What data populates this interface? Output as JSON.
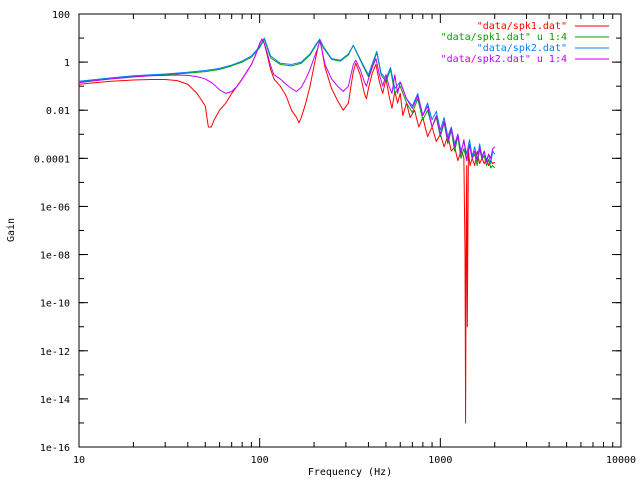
{
  "chart_data": {
    "type": "line",
    "title": "",
    "xlabel": "Frequency (Hz)",
    "ylabel": "Gain",
    "x_scale": "log",
    "y_scale": "log",
    "xlim": [
      10,
      10000
    ],
    "ylim": [
      1e-16,
      100
    ],
    "x_ticks": [
      {
        "value": 10,
        "label": "10"
      },
      {
        "value": 100,
        "label": "100"
      },
      {
        "value": 1000,
        "label": "1000"
      },
      {
        "value": 10000,
        "label": "10000"
      }
    ],
    "y_ticks": [
      {
        "value": 100,
        "label": "100"
      },
      {
        "value": 1,
        "label": "1"
      },
      {
        "value": 0.01,
        "label": "0.01"
      },
      {
        "value": 0.0001,
        "label": "0.0001"
      },
      {
        "value": 1e-06,
        "label": "1e-06"
      },
      {
        "value": 1e-08,
        "label": "1e-08"
      },
      {
        "value": 1e-10,
        "label": "1e-10"
      },
      {
        "value": 1e-12,
        "label": "1e-12"
      },
      {
        "value": 1e-14,
        "label": "1e-14"
      },
      {
        "value": 1e-16,
        "label": "1e-16"
      }
    ],
    "grid": false,
    "legend_position": "top-right",
    "series": [
      {
        "name": "\"data/spk1.dat\"",
        "color": "#ff0000",
        "x": [
          10,
          15,
          20,
          25,
          30,
          35,
          40,
          45,
          50,
          52,
          54,
          56,
          60,
          65,
          70,
          75,
          80,
          85,
          90,
          95,
          100,
          103,
          106,
          110,
          115,
          120,
          130,
          140,
          150,
          160,
          165,
          170,
          180,
          190,
          200,
          210,
          215,
          220,
          230,
          250,
          270,
          290,
          310,
          320,
          330,
          340,
          360,
          380,
          390,
          400,
          420,
          440,
          460,
          480,
          500,
          520,
          540,
          560,
          580,
          600,
          620,
          650,
          680,
          720,
          760,
          800,
          850,
          900,
          950,
          1000,
          1050,
          1100,
          1150,
          1200,
          1250,
          1300,
          1330,
          1350,
          1370,
          1380,
          1390,
          1400,
          1410,
          1430,
          1460,
          1500,
          1550,
          1600,
          1650,
          1700,
          1750,
          1800,
          1850,
          1900,
          1950,
          2000
        ],
        "y": [
          0.12,
          0.16,
          0.18,
          0.19,
          0.19,
          0.17,
          0.12,
          0.05,
          0.015,
          0.002,
          0.002,
          0.004,
          0.01,
          0.02,
          0.05,
          0.1,
          0.2,
          0.4,
          0.8,
          2,
          6,
          9,
          6,
          2,
          0.5,
          0.2,
          0.1,
          0.04,
          0.01,
          0.005,
          0.003,
          0.005,
          0.02,
          0.1,
          0.7,
          4,
          8,
          4,
          0.6,
          0.08,
          0.025,
          0.01,
          0.02,
          0.1,
          0.4,
          0.9,
          0.3,
          0.05,
          0.03,
          0.08,
          0.35,
          0.8,
          0.15,
          0.05,
          0.2,
          0.04,
          0.012,
          0.06,
          0.02,
          0.05,
          0.006,
          0.02,
          0.005,
          0.01,
          0.002,
          0.005,
          0.0008,
          0.002,
          0.0005,
          0.001,
          0.0003,
          0.0009,
          0.0002,
          0.0003,
          8e-05,
          0.0002,
          0.00015,
          0.0001,
          1e-08,
          1e-15,
          1e-07,
          5e-05,
          1e-11,
          0.0002,
          5e-05,
          0.0001,
          5e-05,
          0.0002,
          6e-05,
          0.0001,
          6e-05,
          0.0001,
          5e-05,
          8e-05,
          6e-05,
          7e-05
        ]
      },
      {
        "name": "\"data/spk1.dat\" u 1:4",
        "color": "#00a000",
        "x": [
          10,
          15,
          20,
          30,
          40,
          50,
          60,
          70,
          80,
          90,
          100,
          106,
          115,
          130,
          150,
          170,
          190,
          205,
          215,
          225,
          250,
          280,
          310,
          330,
          340,
          370,
          400,
          430,
          445,
          470,
          500,
          530,
          560,
          600,
          650,
          700,
          750,
          800,
          850,
          900,
          950,
          1000,
          1050,
          1100,
          1150,
          1200,
          1250,
          1300,
          1350,
          1400,
          1450,
          1500,
          1550,
          1600,
          1650,
          1700,
          1750,
          1800,
          1850,
          1900,
          1950,
          2000
        ],
        "y": [
          0.15,
          0.2,
          0.25,
          0.3,
          0.35,
          0.4,
          0.5,
          0.7,
          1.0,
          1.6,
          4,
          9,
          1.5,
          0.8,
          0.7,
          0.9,
          2,
          5,
          9,
          4,
          1.3,
          1.1,
          2,
          5,
          3,
          0.8,
          0.25,
          1.2,
          2.5,
          0.3,
          0.15,
          0.5,
          0.05,
          0.1,
          0.02,
          0.008,
          0.03,
          0.004,
          0.01,
          0.002,
          0.005,
          0.0008,
          0.003,
          0.0004,
          0.0015,
          0.0002,
          0.0008,
          0.0001,
          0.00025,
          8e-05,
          0.0004,
          0.0001,
          0.00015,
          5e-05,
          0.00025,
          9e-05,
          0.00013,
          5e-05,
          9e-05,
          4e-05,
          5e-05,
          4e-05
        ]
      },
      {
        "name": "\"data/spk2.dat\"",
        "color": "#0080ff",
        "x": [
          10,
          15,
          20,
          30,
          40,
          50,
          60,
          70,
          80,
          90,
          100,
          106,
          115,
          130,
          150,
          170,
          190,
          205,
          215,
          225,
          250,
          280,
          310,
          330,
          340,
          370,
          400,
          430,
          445,
          470,
          500,
          530,
          560,
          600,
          650,
          700,
          750,
          800,
          850,
          900,
          950,
          1000,
          1050,
          1100,
          1150,
          1200,
          1250,
          1300,
          1350,
          1400,
          1450,
          1500,
          1550,
          1600,
          1650,
          1700,
          1750,
          1800,
          1850,
          1900,
          1950,
          2000
        ],
        "y": [
          0.16,
          0.22,
          0.27,
          0.32,
          0.38,
          0.45,
          0.55,
          0.75,
          1.1,
          1.8,
          4.5,
          10,
          1.8,
          0.9,
          0.8,
          1.0,
          2.2,
          5.5,
          9,
          4.5,
          1.4,
          1.2,
          2.2,
          5,
          3.2,
          0.9,
          0.3,
          1.4,
          2.8,
          0.35,
          0.2,
          0.6,
          0.08,
          0.15,
          0.03,
          0.015,
          0.05,
          0.006,
          0.02,
          0.004,
          0.009,
          0.0015,
          0.005,
          0.0008,
          0.002,
          0.0004,
          0.001,
          0.0002,
          0.0005,
          0.00015,
          0.0006,
          0.00012,
          0.0003,
          8e-05,
          0.0004,
          0.00012,
          0.0002,
          8e-05,
          0.00015,
          6e-05,
          0.0002,
          0.00015
        ]
      },
      {
        "name": "\"data/spk2.dat\" u 1:4",
        "color": "#c000ff",
        "x": [
          10,
          15,
          20,
          25,
          30,
          35,
          40,
          45,
          50,
          55,
          60,
          65,
          70,
          75,
          80,
          85,
          90,
          95,
          100,
          103,
          106,
          110,
          115,
          120,
          130,
          140,
          150,
          160,
          170,
          180,
          190,
          200,
          210,
          215,
          220,
          230,
          250,
          270,
          290,
          310,
          320,
          330,
          340,
          360,
          380,
          390,
          400,
          420,
          440,
          460,
          480,
          500,
          520,
          540,
          560,
          580,
          600,
          650,
          700,
          750,
          800,
          850,
          900,
          950,
          1000,
          1050,
          1100,
          1150,
          1200,
          1250,
          1300,
          1350,
          1400,
          1450,
          1500,
          1550,
          1600,
          1650,
          1700,
          1750,
          1800,
          1850,
          1900,
          1950,
          2000
        ],
        "y": [
          0.14,
          0.2,
          0.24,
          0.27,
          0.28,
          0.29,
          0.28,
          0.25,
          0.2,
          0.13,
          0.07,
          0.05,
          0.06,
          0.1,
          0.2,
          0.4,
          0.8,
          2,
          6,
          9,
          6,
          2.5,
          0.7,
          0.3,
          0.2,
          0.12,
          0.08,
          0.06,
          0.09,
          0.2,
          0.5,
          1.5,
          4,
          8,
          4,
          0.8,
          0.2,
          0.1,
          0.06,
          0.1,
          0.3,
          0.8,
          1.2,
          0.5,
          0.15,
          0.1,
          0.2,
          0.6,
          1.4,
          0.3,
          0.1,
          0.3,
          0.1,
          0.05,
          0.3,
          0.05,
          0.15,
          0.03,
          0.012,
          0.04,
          0.006,
          0.015,
          0.002,
          0.006,
          0.001,
          0.0035,
          0.0005,
          0.0018,
          0.0003,
          0.001,
          0.00015,
          0.0006,
          8e-05,
          0.00035,
          0.0001,
          0.0002,
          8e-05,
          0.0003,
          0.0001,
          0.0002,
          7e-05,
          0.00015,
          0.0001,
          0.00025,
          0.0003
        ]
      }
    ]
  }
}
